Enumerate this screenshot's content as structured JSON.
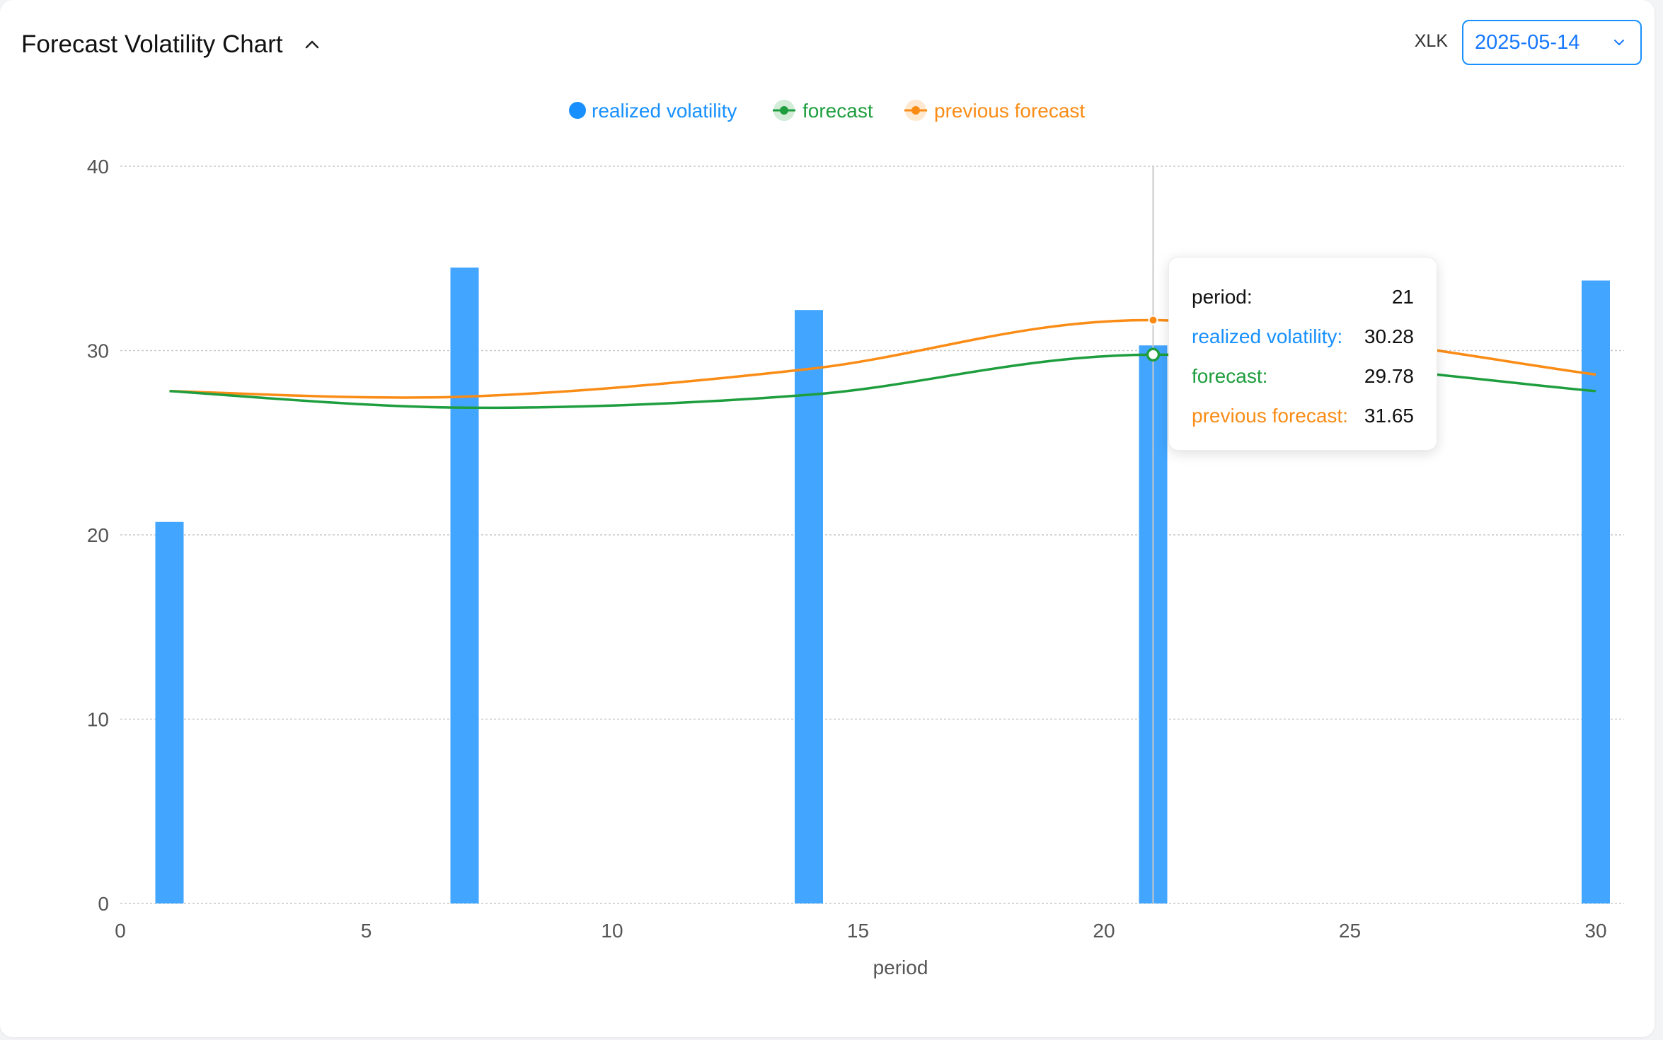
{
  "header": {
    "title": "Forecast Volatility Chart",
    "ticker": "XLK",
    "date": "2025-05-14"
  },
  "icons": {
    "collapse": "chevron-up-icon",
    "dropdown": "chevron-down-icon"
  },
  "colors": {
    "realized": "#42a5ff",
    "realized_text": "#1890ff",
    "forecast": "#1e9e3e",
    "previous": "#fa8c16",
    "accent": "#1890ff"
  },
  "tooltip": {
    "period_label": "period:",
    "period_value": "21",
    "realized_label": "realized volatility:",
    "realized_value": "30.28",
    "forecast_label": "forecast:",
    "forecast_value": "29.78",
    "previous_label": "previous forecast:",
    "previous_value": "31.65"
  },
  "chart_data": {
    "type": "bar",
    "xlabel": "period",
    "ylabel": "",
    "xlim": [
      0,
      30
    ],
    "ylim": [
      0,
      40
    ],
    "x_ticks": [
      0,
      5,
      10,
      15,
      20,
      25,
      30
    ],
    "y_ticks": [
      0,
      10,
      20,
      30,
      40
    ],
    "grid": true,
    "legend_position": "top-center",
    "hover_period": 21,
    "series": [
      {
        "name": "realized volatility",
        "type": "bar",
        "x": [
          1,
          7,
          14,
          21,
          30
        ],
        "values": [
          20.7,
          34.5,
          32.2,
          30.28,
          33.8
        ]
      },
      {
        "name": "forecast",
        "type": "line",
        "x": [
          1,
          7,
          14,
          21,
          30
        ],
        "values": [
          27.8,
          26.9,
          27.6,
          29.78,
          27.8
        ]
      },
      {
        "name": "previous forecast",
        "type": "line",
        "x": [
          1,
          7,
          14,
          21,
          30
        ],
        "values": [
          27.8,
          27.5,
          29.0,
          31.65,
          28.7
        ]
      }
    ]
  }
}
